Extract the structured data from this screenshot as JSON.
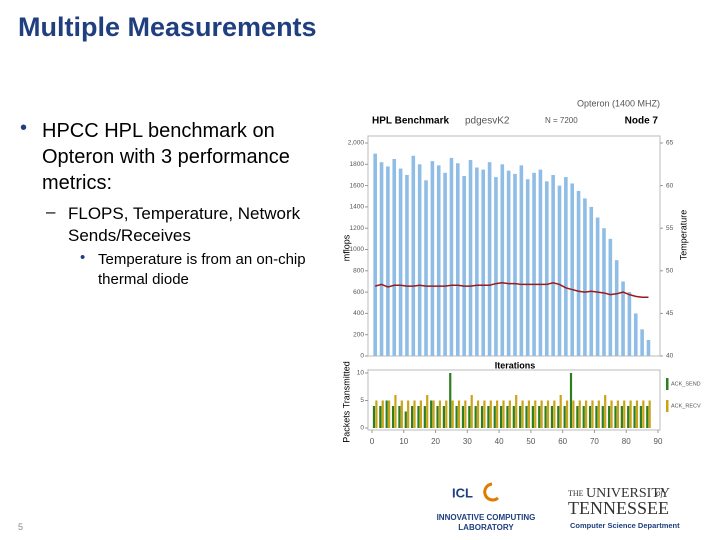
{
  "title": "Multiple Measurements",
  "bullets": [
    {
      "text": "HPCC HPL benchmark on Opteron with 3 performance metrics:",
      "items": [
        {
          "text": "FLOPS, Temperature, Network Sends/Receives",
          "items": [
            {
              "text": "Temperature is from an on-chip thermal diode"
            }
          ]
        }
      ]
    }
  ],
  "slide_number": "5",
  "logos": {
    "icl": "ICL",
    "icl_name": "INNOVATIVE COMPUTING",
    "icl_lab": "LABORATORY",
    "ut_the": "THE",
    "ut_univ": "UNIVERSITY",
    "ut_of": "of",
    "ut_tenn": "TENNESSEE",
    "ut_dept": "Computer Science Department"
  },
  "chart_data": [
    {
      "type": "bar",
      "title": "HPL Benchmark",
      "subtitle": "pdgesvK2",
      "annotations": [
        "N = 7200",
        "Opteron (1400 MHZ)",
        "Node 7"
      ],
      "ylabel": "mflops",
      "y2label": "Temperature",
      "xlabel": "Iterations",
      "x": [
        1,
        3,
        5,
        7,
        9,
        11,
        13,
        15,
        17,
        19,
        21,
        23,
        25,
        27,
        29,
        31,
        33,
        35,
        37,
        39,
        41,
        43,
        45,
        47,
        49,
        51,
        53,
        55,
        57,
        59,
        61,
        63,
        65,
        67,
        69,
        71,
        73,
        75,
        77,
        79,
        81,
        83,
        85,
        87
      ],
      "values": [
        1900,
        1820,
        1780,
        1850,
        1760,
        1700,
        1880,
        1800,
        1650,
        1830,
        1790,
        1720,
        1860,
        1810,
        1690,
        1840,
        1770,
        1750,
        1820,
        1680,
        1800,
        1740,
        1710,
        1790,
        1660,
        1720,
        1750,
        1640,
        1700,
        1600,
        1680,
        1620,
        1550,
        1480,
        1400,
        1300,
        1200,
        1100,
        900,
        700,
        600,
        400,
        250,
        150
      ],
      "color": "#8fbde6",
      "line": {
        "color": "#9b1b1b",
        "axis": "y2",
        "values": [
          48.2,
          48.4,
          48.1,
          48.3,
          48.3,
          48.2,
          48.2,
          48.3,
          48.2,
          48.2,
          48.2,
          48.2,
          48.3,
          48.3,
          48.2,
          48.2,
          48.3,
          48.3,
          48.3,
          48.5,
          48.6,
          48.5,
          48.5,
          48.4,
          48.4,
          48.4,
          48.4,
          48.4,
          48.6,
          48.4,
          48.0,
          47.8,
          47.6,
          47.5,
          47.6,
          47.5,
          47.4,
          47.2,
          47.3,
          47.5,
          47.2,
          47.0,
          46.9,
          46.9
        ]
      },
      "xlim": [
        0,
        90
      ],
      "ylim": [
        0,
        2000
      ],
      "yticks": [
        0,
        200,
        400,
        600,
        800,
        1000,
        1200,
        1400,
        1600,
        1800,
        {
          "value": 2000,
          "label": "2,000"
        }
      ],
      "y2lim": [
        40,
        65
      ],
      "y2ticks": [
        40,
        45,
        50,
        55,
        60,
        65
      ]
    },
    {
      "type": "bar",
      "ylabel": "Packets Transmitted",
      "x": [
        1,
        3,
        5,
        7,
        9,
        11,
        13,
        15,
        17,
        19,
        21,
        23,
        25,
        27,
        29,
        31,
        33,
        35,
        37,
        39,
        41,
        43,
        45,
        47,
        49,
        51,
        53,
        55,
        57,
        59,
        61,
        63,
        65,
        67,
        69,
        71,
        73,
        75,
        77,
        79,
        81,
        83,
        85,
        87
      ],
      "series": [
        {
          "name": "ACK_SEND",
          "color": "#2e7d1e",
          "values": [
            4,
            4,
            5,
            4,
            4,
            3,
            4,
            4,
            4,
            5,
            4,
            4,
            10,
            4,
            4,
            4,
            4,
            4,
            4,
            4,
            4,
            4,
            4,
            4,
            4,
            4,
            4,
            4,
            4,
            4,
            4,
            10,
            4,
            4,
            4,
            4,
            4,
            4,
            4,
            4,
            4,
            4,
            4,
            4
          ]
        },
        {
          "name": "ACK_RECV",
          "color": "#c8a416",
          "values": [
            5,
            5,
            5,
            6,
            5,
            5,
            5,
            5,
            6,
            5,
            5,
            5,
            5,
            5,
            5,
            6,
            5,
            5,
            5,
            5,
            5,
            5,
            6,
            5,
            5,
            5,
            5,
            5,
            5,
            6,
            5,
            5,
            5,
            5,
            5,
            5,
            6,
            5,
            5,
            5,
            5,
            5,
            5,
            5
          ]
        }
      ],
      "xlim": [
        0,
        90
      ],
      "xticks": [
        0,
        10,
        20,
        30,
        40,
        50,
        60,
        70,
        80,
        90
      ],
      "ylim": [
        0,
        10
      ],
      "yticks": [
        0,
        5,
        10
      ]
    }
  ]
}
